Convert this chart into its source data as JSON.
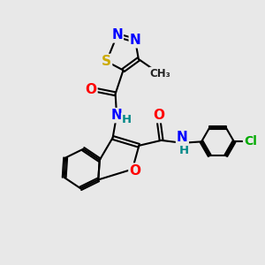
{
  "background_color": "#e8e8e8",
  "figsize": [
    3.0,
    3.0
  ],
  "dpi": 100,
  "atom_colors": {
    "N": "#0000ff",
    "O": "#ff0000",
    "S": "#ccaa00",
    "Cl": "#00aa00",
    "C": "#000000",
    "H": "#008888"
  },
  "bond_color": "#000000",
  "bond_width": 1.5,
  "font_size_atom": 10
}
